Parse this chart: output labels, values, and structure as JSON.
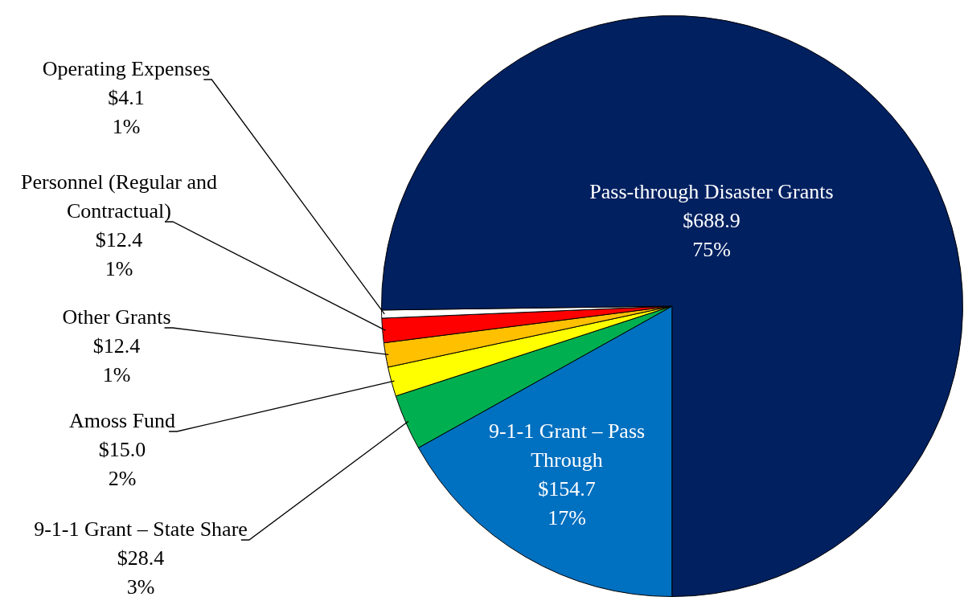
{
  "chart_data": {
    "type": "pie",
    "categories": [
      "9-1-1 Grant – Pass Through",
      "9-1-1 Grant – State Share",
      "Amoss Fund",
      "Other Grants",
      "Personnel (Regular and Contractual)",
      "Operating Expenses",
      "Pass-through Disaster Grants"
    ],
    "values": [
      154.7,
      28.4,
      15.0,
      12.4,
      12.4,
      4.1,
      688.9
    ],
    "colors": [
      "#0070c0",
      "#00b050",
      "#ffff00",
      "#ffc000",
      "#ff0000",
      "#ffffff",
      "#002060"
    ],
    "value_labels": [
      "$154.7\n17%",
      "$28.4\n3%",
      "$15.0\n2%",
      "$12.4\n1%",
      "$12.4\n1%",
      "$4.1\n1%",
      "$688.9\n75%"
    ],
    "legend": false
  }
}
